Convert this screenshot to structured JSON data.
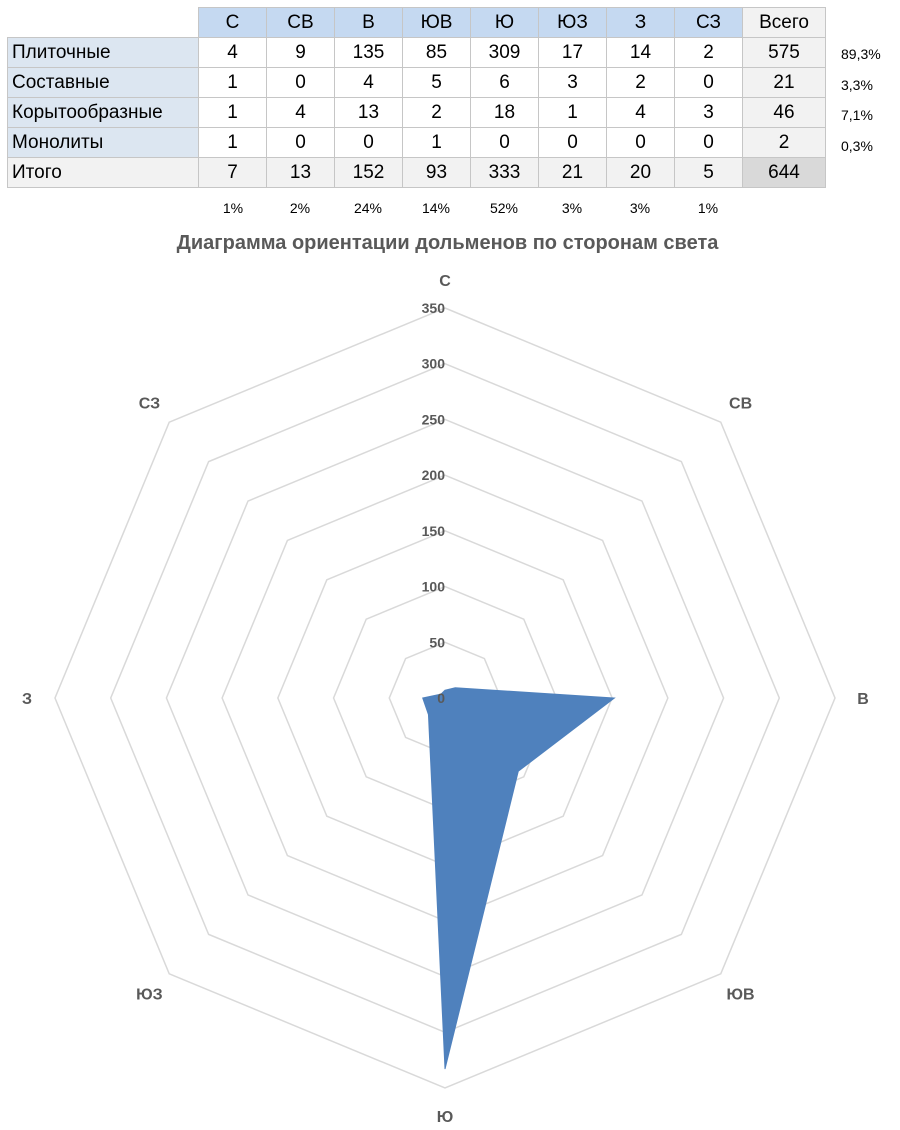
{
  "table": {
    "columns": [
      "С",
      "СВ",
      "В",
      "ЮВ",
      "Ю",
      "ЮЗ",
      "З",
      "СЗ",
      "Всего"
    ],
    "rows": [
      {
        "label": "Плиточные",
        "values": [
          "4",
          "9",
          "135",
          "85",
          "309",
          "17",
          "14",
          "2",
          "575"
        ],
        "share": "89,3%"
      },
      {
        "label": "Составные",
        "values": [
          "1",
          "0",
          "4",
          "5",
          "6",
          "3",
          "2",
          "0",
          "21"
        ],
        "share": "3,3%"
      },
      {
        "label": "Корытообразные",
        "values": [
          "1",
          "4",
          "13",
          "2",
          "18",
          "1",
          "4",
          "3",
          "46"
        ],
        "share": "7,1%"
      },
      {
        "label": "Монолиты",
        "values": [
          "1",
          "0",
          "0",
          "1",
          "0",
          "0",
          "0",
          "0",
          "2"
        ],
        "share": "0,3%"
      }
    ],
    "total": {
      "label": "Итого",
      "values": [
        "7",
        "13",
        "152",
        "93",
        "333",
        "21",
        "20",
        "5",
        "644"
      ]
    },
    "direction_percents": [
      "1%",
      "2%",
      "24%",
      "14%",
      "52%",
      "3%",
      "3%",
      "1%"
    ]
  },
  "chart_data": {
    "type": "radar",
    "title": "Диаграмма ориентации дольменов по сторонам света",
    "categories": [
      "С",
      "СВ",
      "В",
      "ЮВ",
      "Ю",
      "ЮЗ",
      "З",
      "СЗ"
    ],
    "series": [
      {
        "values": [
          7,
          13,
          152,
          93,
          333,
          21,
          20,
          5
        ],
        "color": "#4f81bd"
      }
    ],
    "r_ticks": [
      "0",
      "50",
      "100",
      "150",
      "200",
      "250",
      "300",
      "350"
    ],
    "r_range": [
      0,
      350
    ],
    "grid": true,
    "grid_color": "#d9d9d9",
    "label_color": "#595959"
  }
}
